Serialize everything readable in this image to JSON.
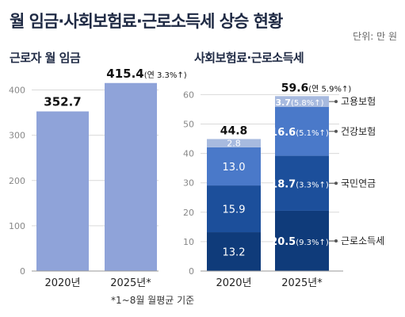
{
  "title": "월 임금·사회보험료·근로소득세 상승 현황",
  "unit_label": "단위: 만 원",
  "footnote": "*1~8월 월평균 기준",
  "colors": {
    "wage_bar": "#8fa3d9",
    "income_tax": "#0f3b7a",
    "national_pension": "#1c4f9b",
    "health_insurance": "#4a79c9",
    "employment_insurance": "#a7badf",
    "title": "#1f2a44"
  },
  "chart_data": [
    {
      "type": "bar",
      "title": "근로자 월 임금",
      "categories": [
        "2020년",
        "2025년*"
      ],
      "values": [
        352.7,
        415.4
      ],
      "value_labels": [
        "352.7",
        "415.4"
      ],
      "value_notes": [
        "",
        "(연 3.3%↑)"
      ],
      "ylim": [
        0,
        450
      ],
      "yticks": [
        0,
        100,
        200,
        300,
        400
      ],
      "grid": true
    },
    {
      "type": "stacked-bar",
      "title": "사회보험료·근로소득세",
      "categories": [
        "2020년",
        "2025년*"
      ],
      "totals": [
        44.8,
        59.6
      ],
      "total_labels": [
        "44.8",
        "59.6"
      ],
      "total_notes": [
        "",
        "(연 5.9%↑)"
      ],
      "ylim": [
        0,
        62
      ],
      "yticks": [
        0,
        10,
        20,
        30,
        40,
        50,
        60
      ],
      "grid": true,
      "series": [
        {
          "name": "근로소득세",
          "values": [
            13.2,
            20.5
          ],
          "labels": [
            "13.2",
            "20.5"
          ],
          "notes": [
            "",
            "(9.3%↑)"
          ]
        },
        {
          "name": "국민연금",
          "values": [
            15.9,
            18.7
          ],
          "labels": [
            "15.9",
            "18.7"
          ],
          "notes": [
            "",
            "(3.3%↑)"
          ]
        },
        {
          "name": "건강보험",
          "values": [
            13.0,
            16.6
          ],
          "labels": [
            "13.0",
            "16.6"
          ],
          "notes": [
            "",
            "(5.1%↑)"
          ]
        },
        {
          "name": "고용보험",
          "values": [
            2.8,
            3.7
          ],
          "labels": [
            "2.8",
            "3.7"
          ],
          "notes": [
            "",
            "(5.8%↑)"
          ]
        }
      ]
    }
  ]
}
